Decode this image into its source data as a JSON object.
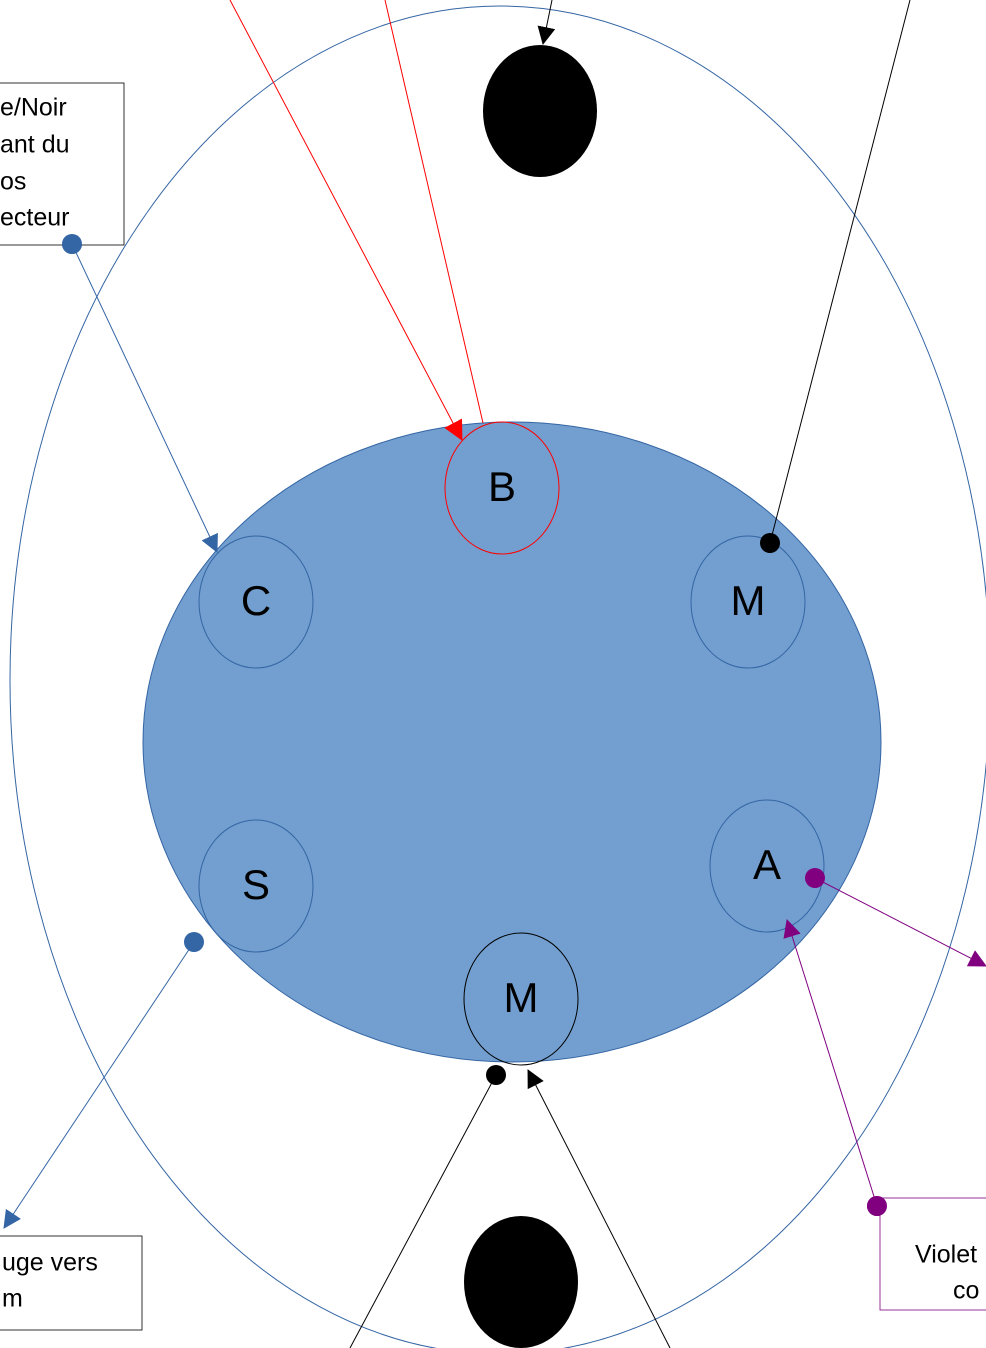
{
  "notes": [
    {
      "lines": [
        "e/Noir",
        "ant du",
        "os",
        "ecteur"
      ]
    },
    {
      "lines": [
        "uge vers",
        "m"
      ]
    },
    {
      "lines": [
        "Violet",
        "co"
      ]
    }
  ],
  "pins": [
    "B",
    "C",
    "M",
    "S",
    "A",
    "M"
  ]
}
